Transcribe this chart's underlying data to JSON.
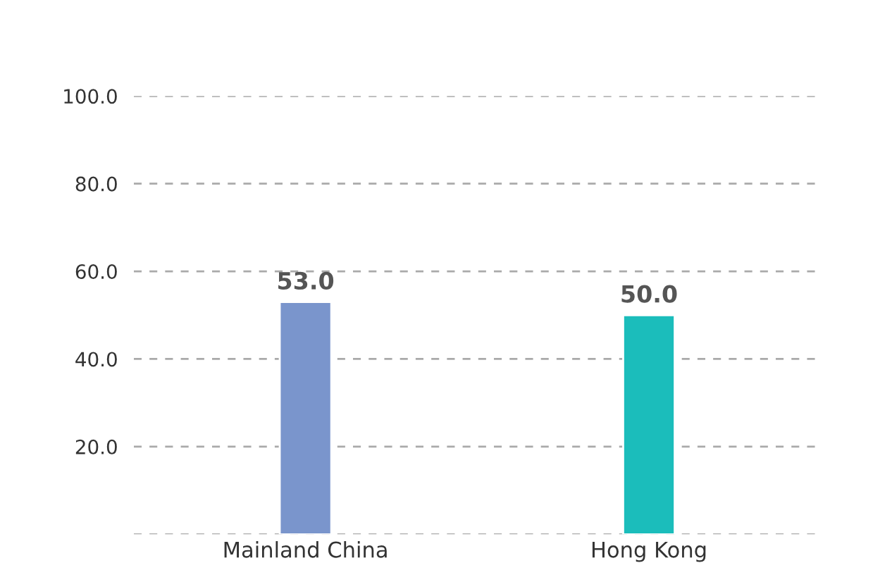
{
  "chart_data": {
    "type": "bar",
    "categories": [
      "Mainland China",
      "Hong Kong"
    ],
    "values": [
      53.0,
      50.0
    ],
    "colors": [
      "#7a95cc",
      "#1bbdbb"
    ],
    "value_labels": [
      "53.0",
      "50.0"
    ],
    "ylim": [
      0,
      100
    ],
    "yticks": [
      {
        "value": 0,
        "label": null
      },
      {
        "value": 20,
        "label": "20.0"
      },
      {
        "value": 40,
        "label": "40.0"
      },
      {
        "value": 60,
        "label": "60.0"
      },
      {
        "value": 80,
        "label": "80.0"
      },
      {
        "value": 100,
        "label": "100.0"
      }
    ],
    "grid": "y"
  }
}
